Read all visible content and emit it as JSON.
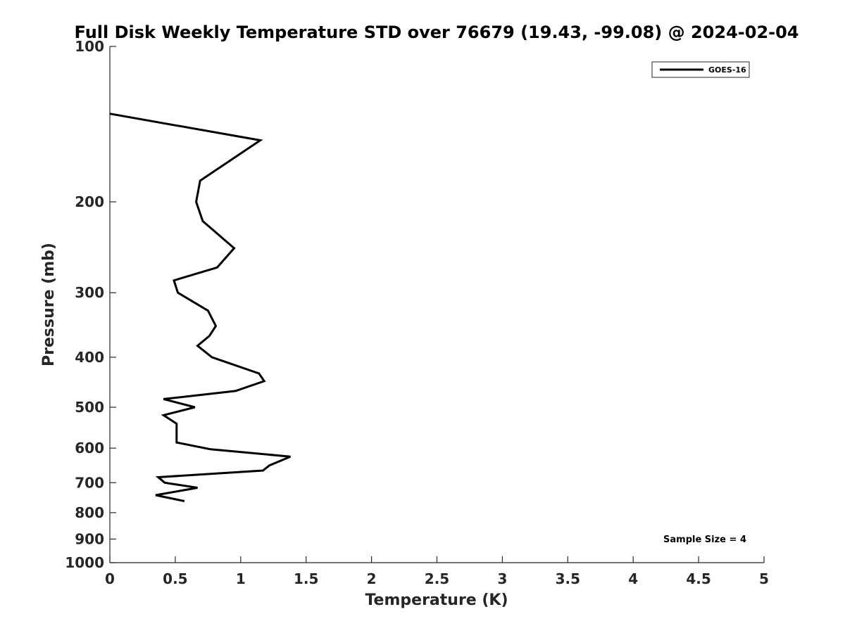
{
  "chart_data": {
    "type": "line",
    "title": "Full Disk Weekly Temperature STD over 76679 (19.43, -99.08) @ 2024-02-04",
    "xlabel": "Temperature (K)",
    "ylabel": "Pressure (mb)",
    "xlim": [
      0,
      5
    ],
    "ylim": [
      100,
      1000
    ],
    "y_scale": "log",
    "y_reversed": true,
    "grid": false,
    "legend_position": "top-right",
    "x_ticks": [
      "0",
      "0.5",
      "1",
      "1.5",
      "2",
      "2.5",
      "3",
      "3.5",
      "4",
      "4.5",
      "5"
    ],
    "x_tick_values": [
      0,
      0.5,
      1,
      1.5,
      2,
      2.5,
      3,
      3.5,
      4,
      4.5,
      5
    ],
    "y_ticks": [
      "100",
      "200",
      "300",
      "400",
      "500",
      "600",
      "700",
      "800",
      "900",
      "1000"
    ],
    "y_tick_values": [
      100,
      200,
      300,
      400,
      500,
      600,
      700,
      800,
      900,
      1000
    ],
    "series": [
      {
        "name": "GOES-16",
        "color": "#000000",
        "points": [
          {
            "x": 0.0,
            "y": 135
          },
          {
            "x": 1.15,
            "y": 152
          },
          {
            "x": 0.69,
            "y": 182
          },
          {
            "x": 0.66,
            "y": 200
          },
          {
            "x": 0.71,
            "y": 218
          },
          {
            "x": 0.95,
            "y": 246
          },
          {
            "x": 0.82,
            "y": 268
          },
          {
            "x": 0.49,
            "y": 284
          },
          {
            "x": 0.52,
            "y": 300
          },
          {
            "x": 0.75,
            "y": 325
          },
          {
            "x": 0.81,
            "y": 348
          },
          {
            "x": 0.76,
            "y": 364
          },
          {
            "x": 0.67,
            "y": 380
          },
          {
            "x": 0.78,
            "y": 400
          },
          {
            "x": 1.14,
            "y": 430
          },
          {
            "x": 1.18,
            "y": 445
          },
          {
            "x": 0.96,
            "y": 465
          },
          {
            "x": 0.41,
            "y": 482
          },
          {
            "x": 0.65,
            "y": 500
          },
          {
            "x": 0.41,
            "y": 518
          },
          {
            "x": 0.51,
            "y": 538
          },
          {
            "x": 0.51,
            "y": 585
          },
          {
            "x": 0.77,
            "y": 603
          },
          {
            "x": 1.38,
            "y": 623
          },
          {
            "x": 1.22,
            "y": 648
          },
          {
            "x": 1.17,
            "y": 663
          },
          {
            "x": 0.37,
            "y": 683
          },
          {
            "x": 0.42,
            "y": 700
          },
          {
            "x": 0.67,
            "y": 716
          },
          {
            "x": 0.35,
            "y": 740
          },
          {
            "x": 0.57,
            "y": 760
          }
        ]
      }
    ],
    "annotations": [
      {
        "text": "Sample Size = 4"
      }
    ]
  }
}
